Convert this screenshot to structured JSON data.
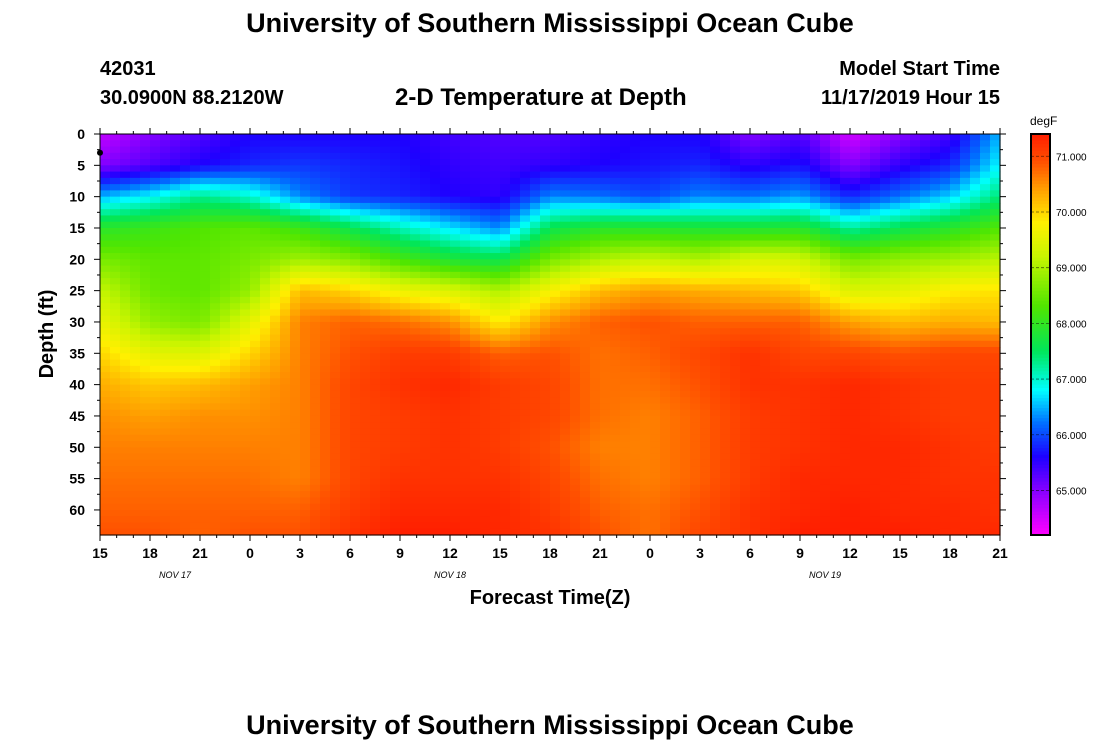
{
  "page": {
    "title_top": "University of Southern Mississippi Ocean Cube",
    "title_bottom": "University of Southern Mississippi Ocean Cube",
    "station_id": "42031",
    "coordinates": "30.0900N 88.2120W",
    "plot_title": "2-D Temperature at Depth",
    "model_start_label": "Model Start Time",
    "model_start_value": "11/17/2019 Hour 15"
  },
  "chart_data": {
    "type": "heatmap",
    "title": "2-D Temperature at Depth",
    "xlabel": "Forecast Time(Z)",
    "ylabel": "Depth (ft)",
    "x_range_hours": [
      0,
      54
    ],
    "y_range_ft": [
      0,
      64
    ],
    "x_ticks": [
      "15",
      "18",
      "21",
      "0",
      "3",
      "6",
      "9",
      "12",
      "15",
      "18",
      "21",
      "0",
      "3",
      "6",
      "9",
      "12",
      "15",
      "18",
      "21"
    ],
    "date_labels": [
      {
        "text": "NOV 17",
        "hour": 4.5
      },
      {
        "text": "NOV 18",
        "hour": 21
      },
      {
        "text": "NOV 19",
        "hour": 43.5
      }
    ],
    "y_ticks": [
      0,
      5,
      10,
      15,
      20,
      25,
      30,
      35,
      40,
      45,
      50,
      55,
      60
    ],
    "colorbar": {
      "unit": "degF",
      "min": 64.2,
      "max": 71.4,
      "labels": [
        "71.000",
        "70.000",
        "69.000",
        "68.000",
        "67.000",
        "66.000",
        "65.000"
      ],
      "label_values": [
        71,
        70,
        69,
        68,
        67,
        66,
        65
      ]
    },
    "marker": {
      "hour": 0,
      "depth": 3
    },
    "hours": [
      0,
      3,
      6,
      9,
      12,
      15,
      18,
      21,
      24,
      27,
      30,
      33,
      36,
      39,
      42,
      45,
      48,
      51,
      54
    ],
    "depths": [
      0,
      5,
      10,
      15,
      20,
      25,
      30,
      35,
      40,
      45,
      50,
      55,
      60,
      64
    ],
    "temperature": [
      [
        64.6,
        65.0,
        65.3,
        65.6,
        65.6,
        65.6,
        65.6,
        65.4,
        65.3,
        65.3,
        65.5,
        65.6,
        65.6,
        65.0,
        65.3,
        64.5,
        65.0,
        65.4,
        66.5
      ],
      [
        65.0,
        65.3,
        65.6,
        65.8,
        65.9,
        65.8,
        65.7,
        65.5,
        65.4,
        65.5,
        65.6,
        65.7,
        65.8,
        65.5,
        65.7,
        65.0,
        65.5,
        65.8,
        66.8
      ],
      [
        66.5,
        66.8,
        67.3,
        67.0,
        66.3,
        65.9,
        65.8,
        65.6,
        65.5,
        66.3,
        66.2,
        66.0,
        66.3,
        66.2,
        66.4,
        65.8,
        66.2,
        66.6,
        67.4
      ],
      [
        67.9,
        68.1,
        68.3,
        68.4,
        68.1,
        67.6,
        67.1,
        66.7,
        66.3,
        67.6,
        67.9,
        67.9,
        67.8,
        67.8,
        67.9,
        67.2,
        67.6,
        67.9,
        68.3
      ],
      [
        68.6,
        68.4,
        68.4,
        68.6,
        68.9,
        68.7,
        68.2,
        67.8,
        67.6,
        68.6,
        69.0,
        69.2,
        69.0,
        69.4,
        69.3,
        68.6,
        68.8,
        68.9,
        69.1
      ],
      [
        69.2,
        68.5,
        68.4,
        68.8,
        70.2,
        70.0,
        69.6,
        69.4,
        69.0,
        69.7,
        70.2,
        70.4,
        70.3,
        70.2,
        70.1,
        69.4,
        69.5,
        69.8,
        69.9
      ],
      [
        69.6,
        68.8,
        68.6,
        69.5,
        70.6,
        70.8,
        70.7,
        70.5,
        69.8,
        70.5,
        70.8,
        70.9,
        70.8,
        70.8,
        70.8,
        70.4,
        70.2,
        70.3,
        70.2
      ],
      [
        70.0,
        69.5,
        69.4,
        70.0,
        70.6,
        70.9,
        71.1,
        71.1,
        70.8,
        70.9,
        70.7,
        70.8,
        71.0,
        71.2,
        71.0,
        71.0,
        70.9,
        71.0,
        71.0
      ],
      [
        70.3,
        70.1,
        70.2,
        70.4,
        70.6,
        71.0,
        71.2,
        71.3,
        71.1,
        71.0,
        70.7,
        70.7,
        70.9,
        71.2,
        71.2,
        71.3,
        71.2,
        71.1,
        71.1
      ],
      [
        70.5,
        70.4,
        70.5,
        70.5,
        70.6,
        71.0,
        71.1,
        71.2,
        71.1,
        71.0,
        70.7,
        70.6,
        70.8,
        71.1,
        71.2,
        71.3,
        71.2,
        71.1,
        71.1
      ],
      [
        70.6,
        70.6,
        70.6,
        70.6,
        70.6,
        71.0,
        71.1,
        71.2,
        71.1,
        70.9,
        70.6,
        70.6,
        70.8,
        71.1,
        71.2,
        71.3,
        71.3,
        71.2,
        71.1
      ],
      [
        70.7,
        70.7,
        70.7,
        70.7,
        70.6,
        71.0,
        71.2,
        71.2,
        71.2,
        71.0,
        70.7,
        70.6,
        70.8,
        71.1,
        71.3,
        71.3,
        71.3,
        71.2,
        71.2
      ],
      [
        70.8,
        70.8,
        70.8,
        70.8,
        70.8,
        71.1,
        71.3,
        71.3,
        71.3,
        71.1,
        70.8,
        70.7,
        70.9,
        71.2,
        71.3,
        71.4,
        71.3,
        71.3,
        71.2
      ],
      [
        70.9,
        70.9,
        70.8,
        70.9,
        70.9,
        71.2,
        71.4,
        71.4,
        71.3,
        71.2,
        70.9,
        70.7,
        71.0,
        71.2,
        71.4,
        71.4,
        71.4,
        71.3,
        71.3
      ]
    ]
  }
}
